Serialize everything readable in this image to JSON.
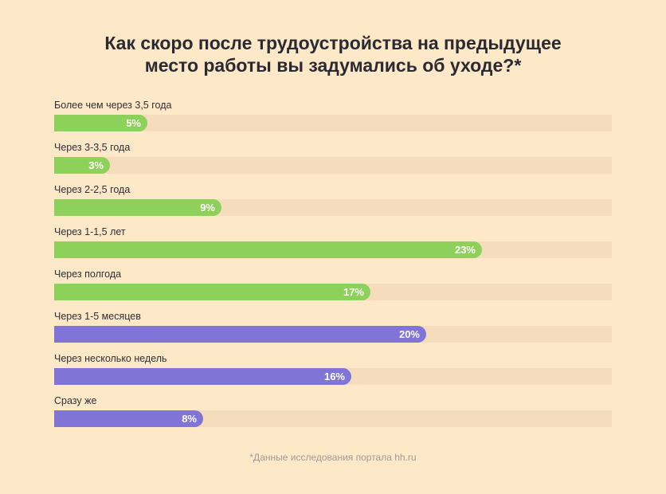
{
  "title_lines": [
    "Как скоро после трудоустройства на предыдущее",
    "место работы вы задумались об уходе?*"
  ],
  "footnote": "*Данные исследования портала hh.ru",
  "colors": {
    "background": "#fde8c8",
    "track": "#f4dcbc",
    "green": "#8ed15a",
    "purple": "#8075d6"
  },
  "chart_data": {
    "type": "bar",
    "orientation": "horizontal",
    "xlim": [
      0,
      30
    ],
    "categories": [
      "Более чем через 3,5 года",
      "Через 3-3,5 года",
      "Через 2-2,5 года",
      "Через 1-1,5 лет",
      "Через полгода",
      "Через 1-5 месяцев",
      "Через несколько недель",
      "Сразу же"
    ],
    "values": [
      5,
      3,
      9,
      23,
      17,
      20,
      16,
      8
    ],
    "value_labels": [
      "5%",
      "3%",
      "9%",
      "23%",
      "17%",
      "20%",
      "16%",
      "8%"
    ],
    "bar_colors": [
      "green",
      "green",
      "green",
      "green",
      "green",
      "purple",
      "purple",
      "purple"
    ]
  }
}
